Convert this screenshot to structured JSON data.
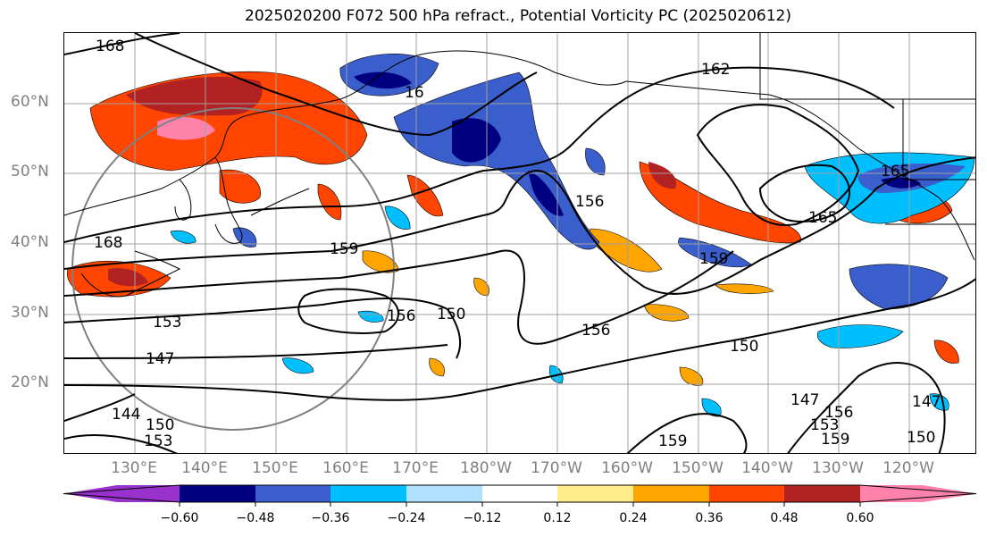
{
  "title": "2025020200 F072 500 hPa refract., Potential Vorticity PC (2025020612)",
  "lat_labels": [
    "60°N",
    "50°N",
    "40°N",
    "30°N",
    "20°N"
  ],
  "lon_labels": [
    "130°E",
    "140°E",
    "150°E",
    "160°E",
    "170°E",
    "180°W",
    "170°W",
    "160°W",
    "150°W",
    "140°W",
    "130°W",
    "120°W"
  ],
  "contour_labels": [
    "168",
    "162",
    "16",
    "168",
    "159",
    "153",
    "147",
    "144",
    "156",
    "150",
    "156",
    "150",
    "156",
    "159",
    "165",
    "165",
    "147",
    "153",
    "156",
    "159",
    "147",
    "150",
    "150",
    "153",
    "159"
  ],
  "colorbar": {
    "colors": [
      "#9932CC",
      "#000080",
      "#3A5FCD",
      "#00BFFF",
      "#B0E2FF",
      "#FFFFFF",
      "#FFEC8B",
      "#FFA500",
      "#FF4500",
      "#B22222",
      "#FF82AB"
    ],
    "tick_labels": [
      "−0.60",
      "−0.48",
      "−0.36",
      "−0.24",
      "−0.12",
      "0.12",
      "0.24",
      "0.36",
      "0.48",
      "0.60"
    ]
  }
}
